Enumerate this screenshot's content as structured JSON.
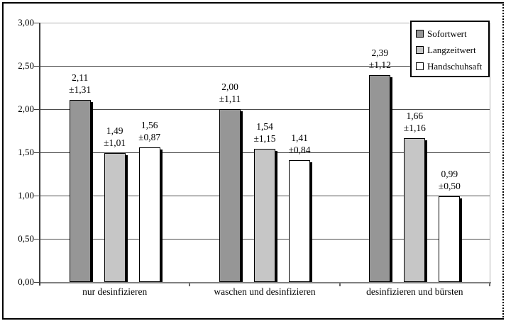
{
  "chart_data": {
    "type": "bar",
    "title": "",
    "categories": [
      "nur desinfizieren",
      "waschen und desinfizieren",
      "desinfizieren und bürsten"
    ],
    "series": [
      {
        "name": "Sofortwert",
        "color": "#969696",
        "values": [
          2.11,
          2.0,
          2.39
        ],
        "errors": [
          1.31,
          1.11,
          1.12
        ],
        "display": [
          {
            "value": "2,11",
            "error": "±1,31"
          },
          {
            "value": "2,00",
            "error": "±1,11"
          },
          {
            "value": "2,39",
            "error": "±1,12"
          }
        ]
      },
      {
        "name": "Langzeitwert",
        "color": "#c6c6c6",
        "values": [
          1.49,
          1.54,
          1.66
        ],
        "errors": [
          1.01,
          1.15,
          1.16
        ],
        "display": [
          {
            "value": "1,49",
            "error": "±1,01"
          },
          {
            "value": "1,54",
            "error": "±1,15"
          },
          {
            "value": "1,66",
            "error": "±1,16"
          }
        ]
      },
      {
        "name": "Handschuhsaft",
        "color": "#ffffff",
        "values": [
          1.56,
          1.41,
          0.99
        ],
        "errors": [
          0.87,
          0.84,
          0.5
        ],
        "display": [
          {
            "value": "1,56",
            "error": "±0,87"
          },
          {
            "value": "1,41",
            "error": "±0,84"
          },
          {
            "value": "0,99",
            "error": "±0,50"
          }
        ]
      }
    ],
    "y_ticks": [
      {
        "value": 0.0,
        "label": "0,00"
      },
      {
        "value": 0.5,
        "label": "0,50"
      },
      {
        "value": 1.0,
        "label": "1,00"
      },
      {
        "value": 1.5,
        "label": "1,50"
      },
      {
        "value": 2.0,
        "label": "2,00"
      },
      {
        "value": 2.5,
        "label": "2,50"
      },
      {
        "value": 3.0,
        "label": "3,00"
      }
    ],
    "ylim": [
      0,
      3
    ],
    "xlabel": "",
    "ylabel": "",
    "grid": true,
    "legend_position": "top-right"
  }
}
